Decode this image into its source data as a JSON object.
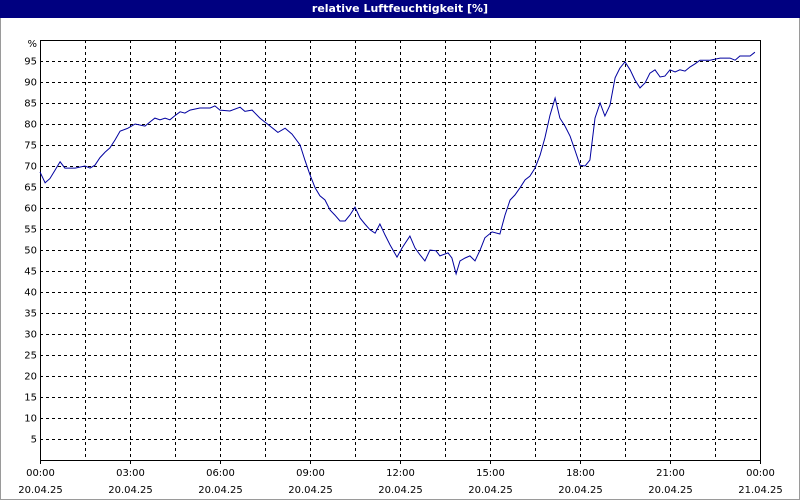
{
  "chart_data": {
    "type": "line",
    "title": "relative Luftfeuchtigkeit [%]",
    "y_label": "%",
    "xlim": [
      0,
      24
    ],
    "ylim": [
      0,
      100
    ],
    "xticks": [
      {
        "value": 0,
        "label": [
          "00:00",
          "20.04.25"
        ]
      },
      {
        "value": 3,
        "label": [
          "03:00",
          "20.04.25"
        ]
      },
      {
        "value": 6,
        "label": [
          "06:00",
          "20.04.25"
        ]
      },
      {
        "value": 9,
        "label": [
          "09:00",
          "20.04.25"
        ]
      },
      {
        "value": 12,
        "label": [
          "12:00",
          "20.04.25"
        ]
      },
      {
        "value": 15,
        "label": [
          "15:00",
          "20.04.25"
        ]
      },
      {
        "value": 18,
        "label": [
          "18:00",
          "20.04.25"
        ]
      },
      {
        "value": 21,
        "label": [
          "21:00",
          "20.04.25"
        ]
      },
      {
        "value": 24,
        "label": [
          "00:00",
          "21.04.25"
        ]
      }
    ],
    "x_minor_ticks": [
      1.5,
      4.5,
      7.5,
      10.5,
      13.5,
      16.5,
      19.5,
      22.5
    ],
    "yticks": [
      5,
      10,
      15,
      20,
      25,
      30,
      35,
      40,
      45,
      50,
      55,
      60,
      65,
      70,
      75,
      80,
      85,
      90,
      95
    ],
    "grid": true,
    "series": [
      {
        "name": "relative Luftfeuchtigkeit",
        "color": "#0000a0",
        "x": [
          0,
          0.17,
          0.33,
          0.5,
          0.67,
          0.83,
          1.17,
          1.5,
          1.67,
          1.83,
          2,
          2.17,
          2.33,
          2.5,
          2.67,
          2.93,
          3.17,
          3.5,
          3.67,
          3.83,
          4,
          4.17,
          4.33,
          4.5,
          4.67,
          4.83,
          5,
          5.33,
          5.67,
          5.83,
          6,
          6.33,
          6.67,
          6.83,
          7.07,
          7.33,
          7.67,
          7.93,
          8.17,
          8.4,
          8.67,
          8.83,
          9,
          9.17,
          9.33,
          9.5,
          9.67,
          9.83,
          10,
          10.17,
          10.33,
          10.5,
          10.67,
          10.83,
          11,
          11.17,
          11.33,
          11.5,
          11.67,
          11.9,
          12.07,
          12.33,
          12.5,
          12.67,
          12.83,
          13,
          13.2,
          13.33,
          13.6,
          13.73,
          13.87,
          14,
          14.17,
          14.33,
          14.5,
          14.67,
          14.83,
          15.07,
          15.33,
          15.5,
          15.67,
          15.83,
          16,
          16.17,
          16.33,
          16.5,
          16.67,
          16.83,
          17,
          17.17,
          17.33,
          17.5,
          17.67,
          17.83,
          18,
          18.17,
          18.33,
          18.5,
          18.67,
          18.83,
          19,
          19.17,
          19.33,
          19.5,
          19.67,
          19.83,
          20,
          20.17,
          20.33,
          20.5,
          20.67,
          20.83,
          21,
          21.17,
          21.33,
          21.5,
          21.67,
          21.83,
          22,
          22.33,
          22.67,
          23,
          23.17,
          23.33,
          23.67,
          23.83
        ],
        "values": [
          68.6,
          66,
          67,
          69,
          71,
          69.5,
          69.5,
          70,
          69.5,
          70.2,
          72,
          73.3,
          74.3,
          76.2,
          78.3,
          79,
          80,
          79.5,
          80.5,
          81.4,
          81,
          81.4,
          81,
          82,
          82.9,
          82.6,
          83.3,
          83.8,
          83.8,
          84.3,
          83.3,
          83.1,
          84,
          83,
          83.3,
          81.4,
          79.5,
          78,
          79,
          77.6,
          75,
          71.4,
          67.9,
          64.8,
          62.9,
          61.9,
          59.5,
          58.3,
          56.9,
          56.9,
          58.3,
          60.2,
          57.6,
          56.2,
          54.8,
          54,
          56.2,
          53.6,
          51.2,
          48.3,
          50.5,
          53.3,
          50.5,
          48.8,
          47.4,
          50,
          49.8,
          48.6,
          49.3,
          48.1,
          44.3,
          47.4,
          48.1,
          48.6,
          47.4,
          50,
          52.9,
          54.3,
          53.8,
          58.3,
          61.9,
          63.1,
          64.8,
          66.7,
          67.6,
          69.5,
          72.6,
          76.7,
          82.1,
          86.2,
          81.4,
          79.5,
          77.1,
          73.8,
          70.2,
          70,
          71.4,
          81.4,
          85,
          81.9,
          84.5,
          91,
          93.3,
          94.8,
          92.9,
          90.5,
          88.6,
          89.8,
          92.1,
          92.9,
          91.2,
          91.4,
          92.9,
          92.4,
          92.9,
          92.6,
          93.6,
          94.3,
          95.2,
          95.2,
          95.7,
          95.7,
          95.2,
          96.2,
          96.2,
          97.1
        ]
      }
    ]
  }
}
